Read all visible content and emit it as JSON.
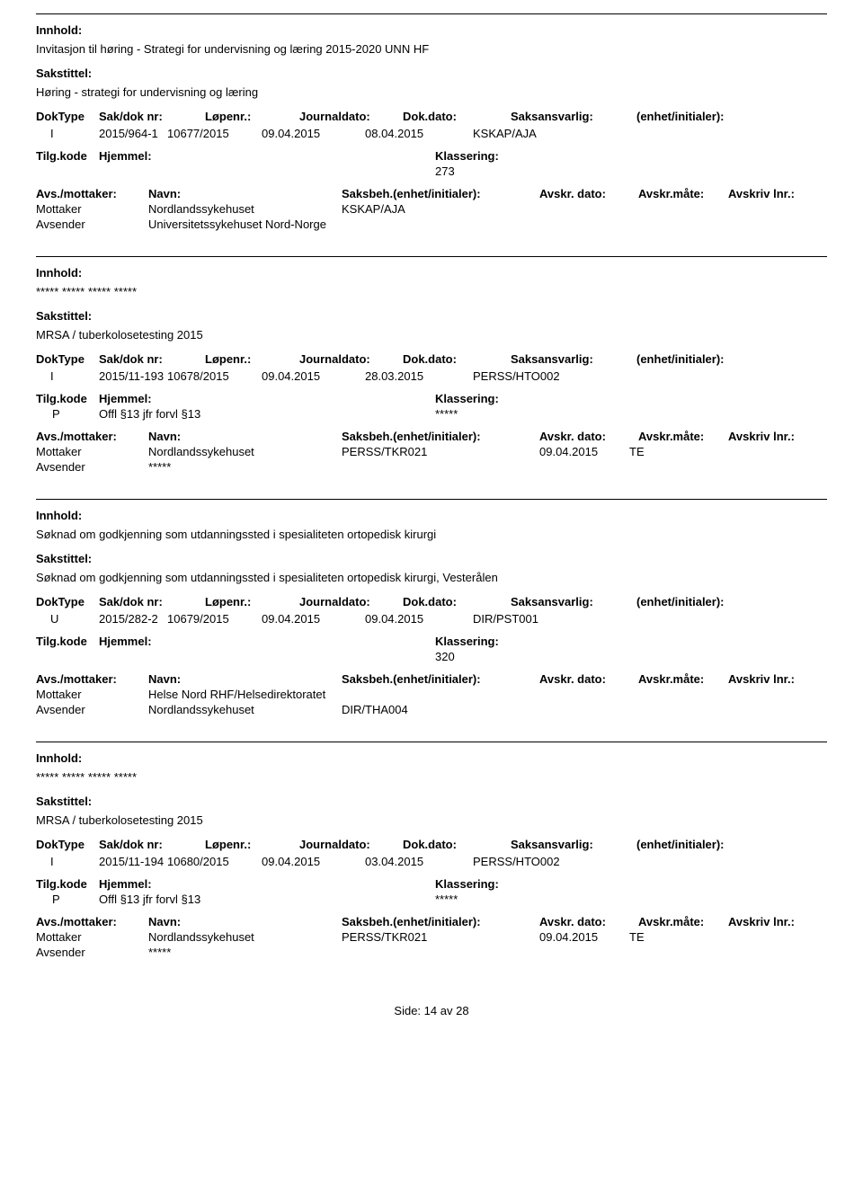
{
  "labels": {
    "innhold": "Innhold:",
    "sakstittel": "Sakstittel:",
    "dokType": "DokType",
    "sakDokNr": "Sak/dok nr:",
    "lopenr": "Løpenr.:",
    "journaldato": "Journaldato:",
    "dokdato": "Dok.dato:",
    "saksansvarlig": "Saksansvarlig:",
    "enhetInitialer": "(enhet/initialer):",
    "tilgkode": "Tilg.kode",
    "hjemmel": "Hjemmel:",
    "klassering": "Klassering:",
    "avsMottaker": "Avs./mottaker:",
    "navn": "Navn:",
    "saksbeh": "Saksbeh.(enhet/initialer):",
    "avskrDato": "Avskr. dato:",
    "avskrMate": "Avskr.måte:",
    "avskrivLnr": "Avskriv lnr.:",
    "mottaker": "Mottaker",
    "avsender": "Avsender"
  },
  "entries": [
    {
      "innhold": "Invitasjon til høring - Strategi for undervisning og læring 2015-2020 UNN HF",
      "sakstittel": "Høring - strategi for undervisning og læring",
      "dokType": "I",
      "sakDokNr": "2015/964-1",
      "lopenr": "10677/2015",
      "journaldato": "09.04.2015",
      "dokdato": "08.04.2015",
      "saksansvarlig": "KSKAP/AJA",
      "tilgkode": "",
      "hjemmel": "",
      "klassering": "273",
      "parties": [
        {
          "role": "Mottaker",
          "name": "Nordlandssykehuset",
          "saksbeh": "KSKAP/AJA",
          "avskrDato": "",
          "avskrMate": ""
        },
        {
          "role": "Avsender",
          "name": "Universitetssykehuset Nord-Norge",
          "saksbeh": "",
          "avskrDato": "",
          "avskrMate": ""
        }
      ]
    },
    {
      "innhold": "***** ***** ***** *****",
      "sakstittel": "MRSA / tuberkolosetesting 2015",
      "dokType": "I",
      "sakDokNr": "2015/11-193",
      "lopenr": "10678/2015",
      "journaldato": "09.04.2015",
      "dokdato": "28.03.2015",
      "saksansvarlig": "PERSS/HTO002",
      "tilgkode": "P",
      "hjemmel": "Offl §13 jfr forvl §13",
      "klassering": "*****",
      "parties": [
        {
          "role": "Mottaker",
          "name": "Nordlandssykehuset",
          "saksbeh": "PERSS/TKR021",
          "avskrDato": "09.04.2015",
          "avskrMate": "TE"
        },
        {
          "role": "Avsender",
          "name": "*****",
          "saksbeh": "",
          "avskrDato": "",
          "avskrMate": ""
        }
      ]
    },
    {
      "innhold": "Søknad om godkjenning som utdanningssted i spesialiteten ortopedisk kirurgi",
      "sakstittel": "Søknad om godkjenning som utdanningssted i spesialiteten ortopedisk kirurgi, Vesterålen",
      "dokType": "U",
      "sakDokNr": "2015/282-2",
      "lopenr": "10679/2015",
      "journaldato": "09.04.2015",
      "dokdato": "09.04.2015",
      "saksansvarlig": "DIR/PST001",
      "tilgkode": "",
      "hjemmel": "",
      "klassering": "320",
      "parties": [
        {
          "role": "Mottaker",
          "name": "Helse Nord RHF/Helsedirektoratet",
          "saksbeh": "",
          "avskrDato": "",
          "avskrMate": ""
        },
        {
          "role": "Avsender",
          "name": "Nordlandssykehuset",
          "saksbeh": "DIR/THA004",
          "avskrDato": "",
          "avskrMate": ""
        }
      ]
    },
    {
      "innhold": "***** ***** ***** *****",
      "sakstittel": "MRSA / tuberkolosetesting 2015",
      "dokType": "I",
      "sakDokNr": "2015/11-194",
      "lopenr": "10680/2015",
      "journaldato": "09.04.2015",
      "dokdato": "03.04.2015",
      "saksansvarlig": "PERSS/HTO002",
      "tilgkode": "P",
      "hjemmel": "Offl §13 jfr forvl §13",
      "klassering": "*****",
      "parties": [
        {
          "role": "Mottaker",
          "name": "Nordlandssykehuset",
          "saksbeh": "PERSS/TKR021",
          "avskrDato": "09.04.2015",
          "avskrMate": "TE"
        },
        {
          "role": "Avsender",
          "name": "*****",
          "saksbeh": "",
          "avskrDato": "",
          "avskrMate": ""
        }
      ]
    }
  ],
  "footer": {
    "sideLabel": "Side:",
    "pageCurrent": "14",
    "av": "av",
    "pageTotal": "28"
  }
}
